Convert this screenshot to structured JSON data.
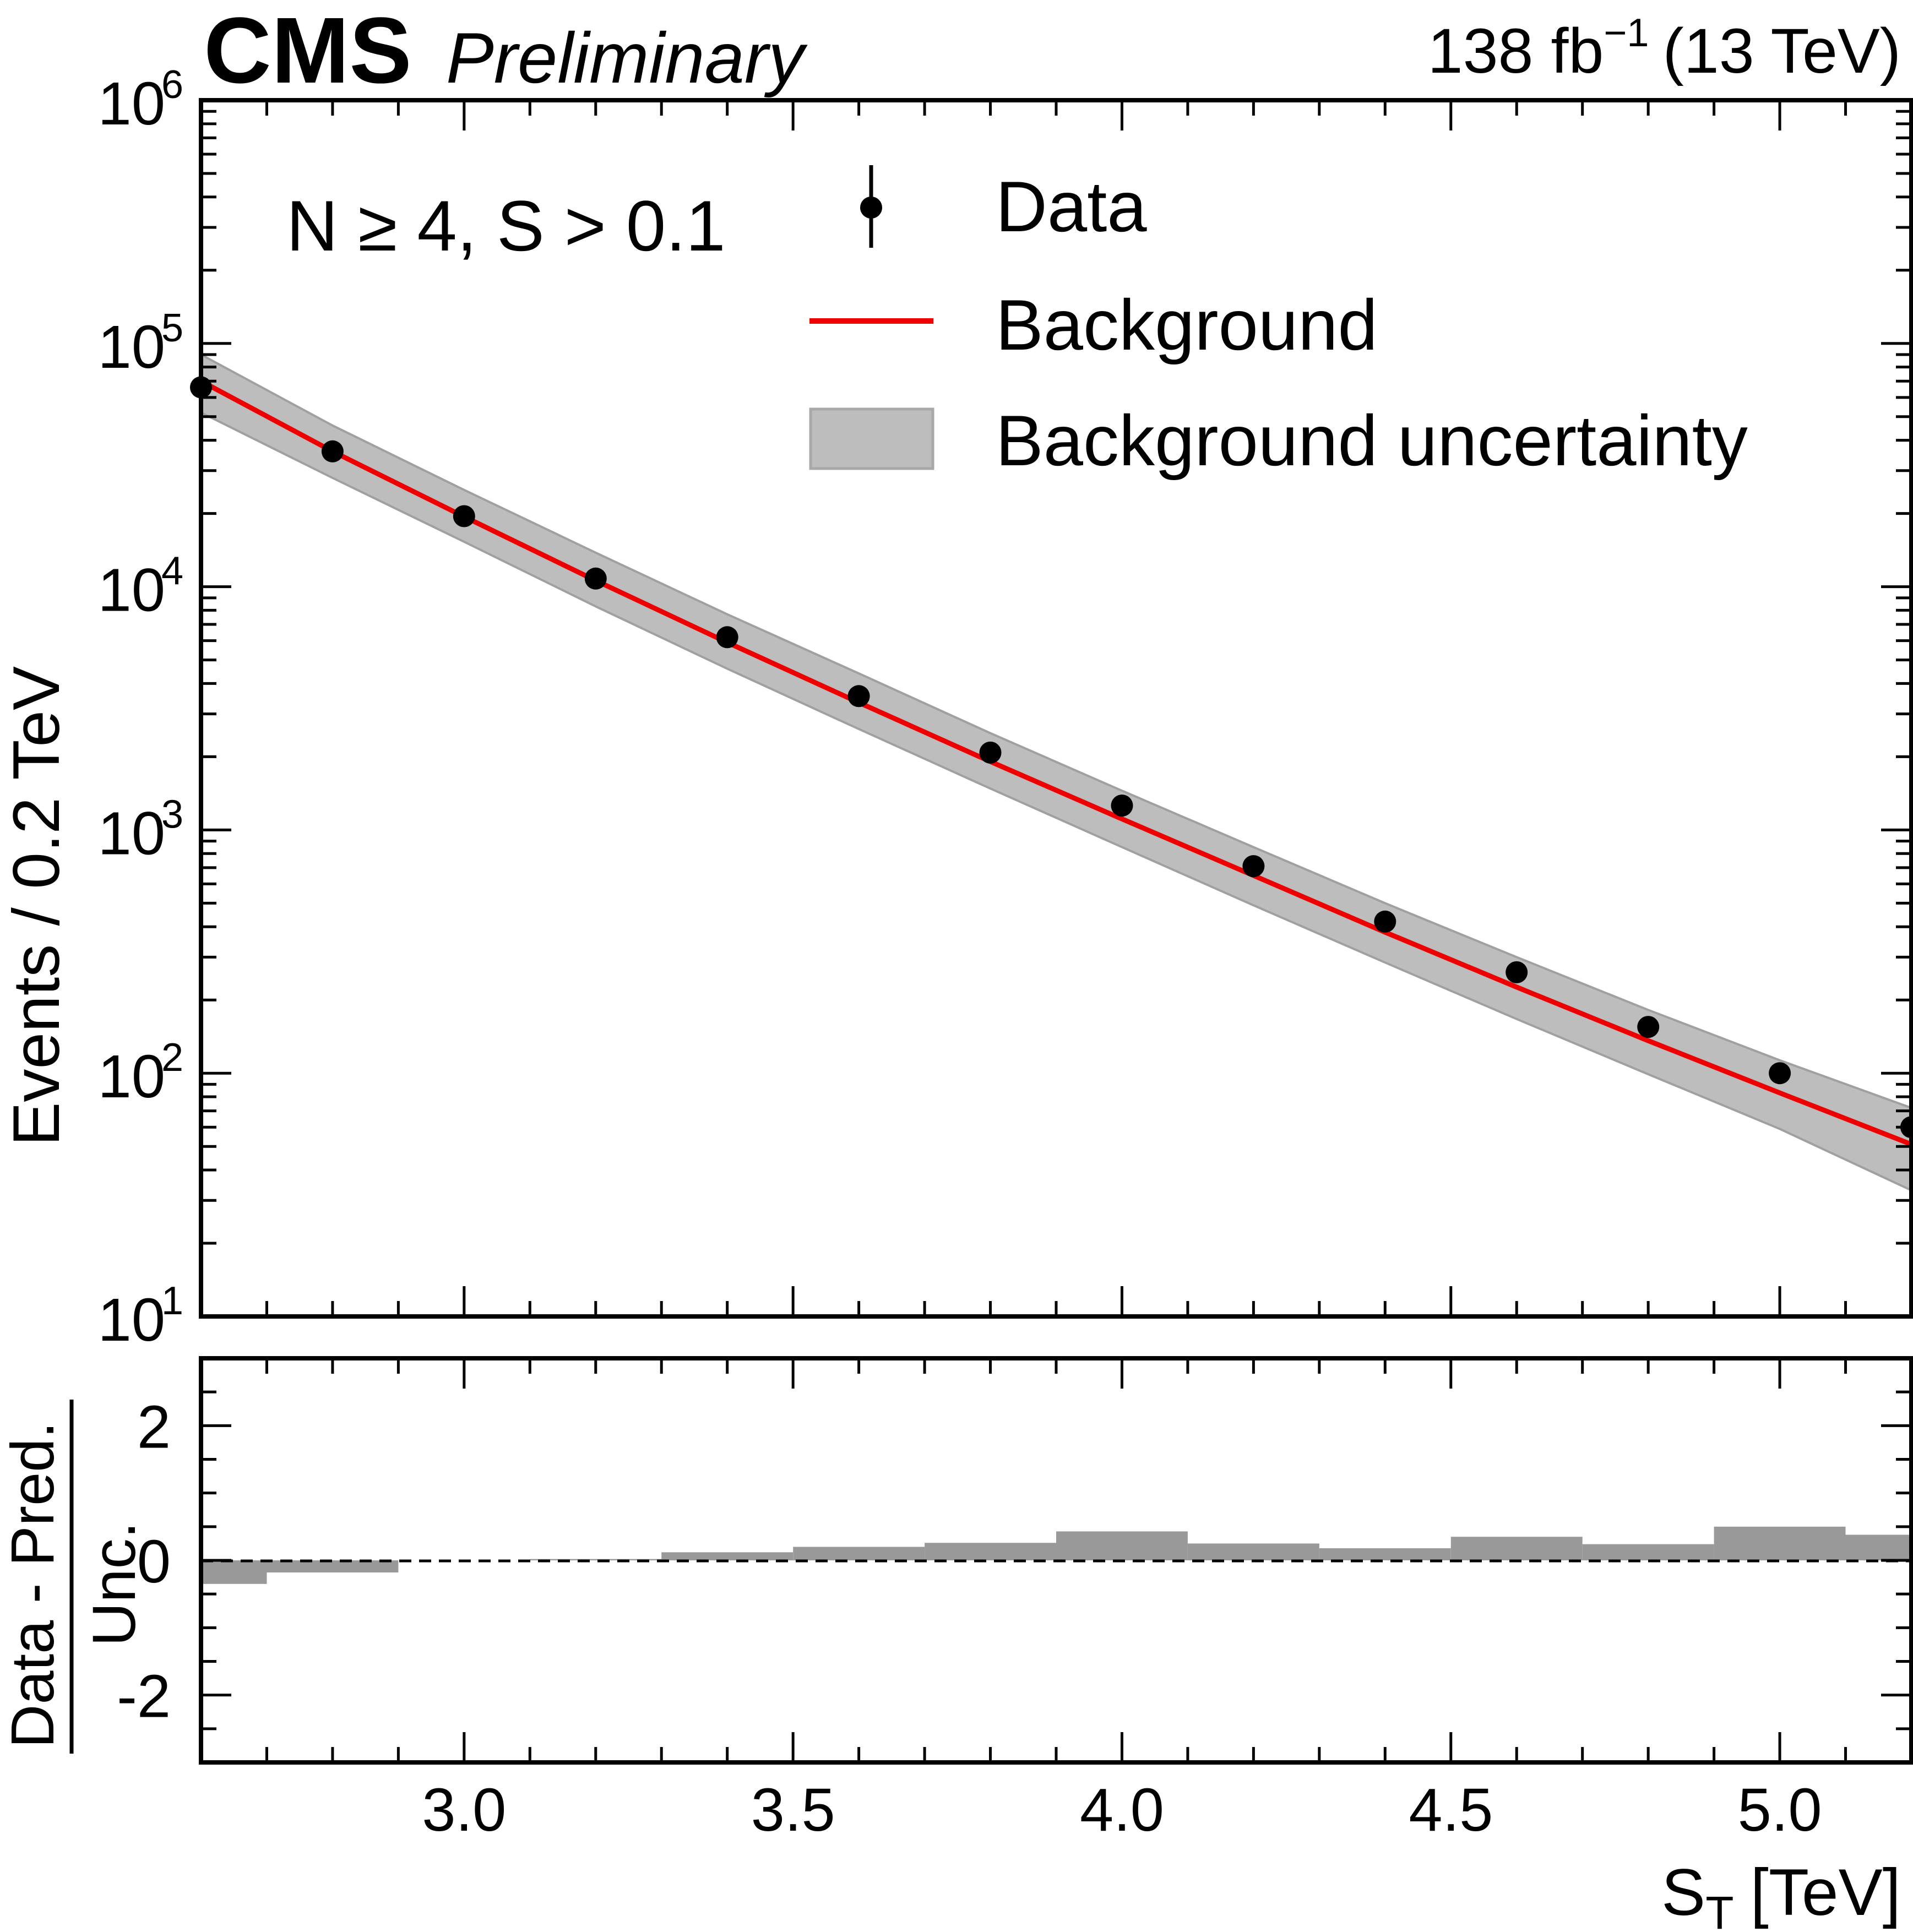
{
  "header": {
    "experiment": "CMS",
    "status": "Preliminary",
    "lumi_value": "138 fb",
    "lumi_exp": "−1",
    "energy": "(13 TeV)"
  },
  "annotation": "N ≥ 4, S > 0.1",
  "legend": {
    "data": "Data",
    "background": "Background",
    "uncertainty": "Background uncertainty"
  },
  "colors": {
    "background_line": "#ee0000",
    "uncertainty_band": "#bdbdbd",
    "pull_bars": "#999999",
    "data": "#000000"
  },
  "chart_data": [
    {
      "type": "scatter",
      "panel": "main",
      "xlim": [
        2.6,
        5.2
      ],
      "ylim": [
        10,
        1000000
      ],
      "yscale": "log",
      "ylabel": "Events / 0.2 TeV",
      "ytick_base": "10",
      "yticks": [
        "1",
        "2",
        "3",
        "4",
        "5",
        "6"
      ],
      "legend_position": "top-right",
      "series": [
        {
          "name": "Data",
          "x": [
            2.6,
            2.8,
            3.0,
            3.2,
            3.4,
            3.6,
            3.8,
            4.0,
            4.2,
            4.4,
            4.6,
            4.8,
            5.0,
            5.2
          ],
          "y": [
            66000,
            36000,
            19500,
            10800,
            6200,
            3550,
            2080,
            1260,
            710,
            420,
            260,
            155,
            100,
            60
          ]
        },
        {
          "name": "Background",
          "x": [
            2.6,
            2.8,
            3.0,
            3.2,
            3.4,
            3.6,
            3.8,
            4.0,
            4.2,
            4.4,
            4.6,
            4.8,
            5.0,
            5.2
          ],
          "y": [
            70000,
            36000,
            19400,
            10600,
            5900,
            3340,
            1910,
            1110,
            650,
            380,
            226,
            136,
            83,
            51
          ]
        },
        {
          "name": "Background uncertainty",
          "x": [
            2.6,
            2.8,
            3.0,
            3.2,
            3.4,
            3.6,
            3.8,
            4.0,
            4.2,
            4.4,
            4.6,
            4.8,
            5.0,
            5.2
          ],
          "low": [
            52000,
            28000,
            15300,
            8300,
            4600,
            2600,
            1480,
            850,
            490,
            285,
            167,
            99,
            59,
            33
          ],
          "high": [
            90000,
            46000,
            25000,
            13800,
            7700,
            4400,
            2500,
            1450,
            850,
            500,
            300,
            182,
            113,
            72
          ]
        }
      ]
    },
    {
      "type": "bar",
      "panel": "pull",
      "xlim": [
        2.6,
        5.2
      ],
      "ylim": [
        -3,
        3
      ],
      "xlabel": "S",
      "xlabel_sub": "T",
      "xlabel_unit": "[TeV]",
      "ylabel_num": "Data - Pred.",
      "ylabel_den": "Unc.",
      "xticks": [
        "3.0",
        "3.5",
        "4.0",
        "4.5",
        "5.0"
      ],
      "yticks": [
        "2",
        "0",
        "-2"
      ],
      "bin_edges": [
        2.5,
        2.7,
        2.9,
        3.1,
        3.3,
        3.5,
        3.7,
        3.9,
        4.1,
        4.3,
        4.5,
        4.7,
        4.9,
        5.1,
        5.3
      ],
      "values": [
        -0.35,
        -0.18,
        0.0,
        0.02,
        0.12,
        0.2,
        0.26,
        0.43,
        0.25,
        0.18,
        0.35,
        0.24,
        0.5,
        0.38
      ]
    }
  ]
}
